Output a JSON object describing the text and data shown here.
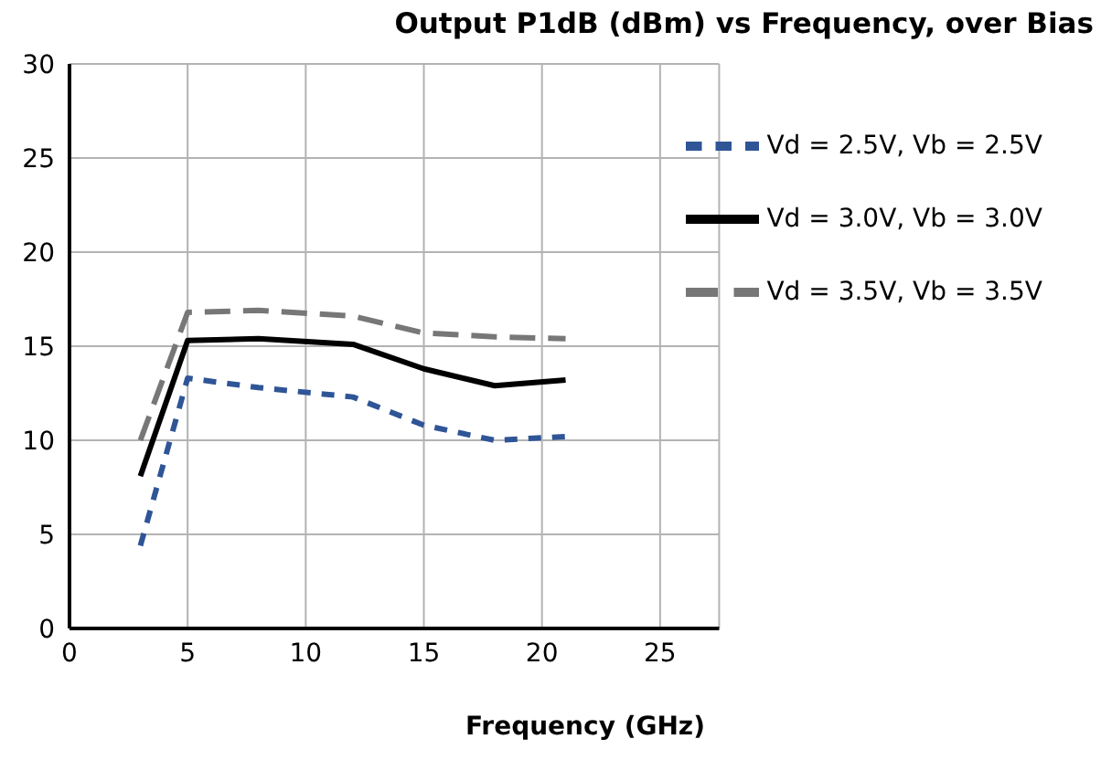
{
  "chart_data": {
    "type": "line",
    "title": "Output P1dB (dBm) vs Frequency, over Bias",
    "xlabel": "Frequency (GHz)",
    "xlim": [
      0,
      27.5
    ],
    "xticks": [
      0,
      5,
      10,
      15,
      20,
      25
    ],
    "ylim": [
      0,
      30
    ],
    "yticks": [
      0,
      5,
      10,
      15,
      20,
      25,
      30
    ],
    "grid": true,
    "legend": "top right",
    "marker": "none",
    "x": [
      3,
      5,
      8,
      12,
      15,
      18,
      21
    ],
    "series": [
      {
        "name": "Vd = 3.5V, Vb = 3.5V",
        "color": "#777777",
        "line_style": "dashed",
        "values": [
          10,
          16.8,
          16.9,
          16.6,
          15.7,
          15.5,
          15.4
        ]
      },
      {
        "name": "Vd = 3.0V, Vb = 3.0V",
        "color": "#000000",
        "line_style": "solid",
        "values": [
          8.1,
          15.3,
          15.4,
          15.1,
          13.8,
          12.9,
          13.2
        ]
      },
      {
        "name": "Vd = 2.5V, Vb = 2.5V",
        "color": "#2f5597",
        "line_style": "dotted",
        "values": [
          4.4,
          13.3,
          12.8,
          12.3,
          10.8,
          10.0,
          10.2
        ]
      }
    ]
  }
}
